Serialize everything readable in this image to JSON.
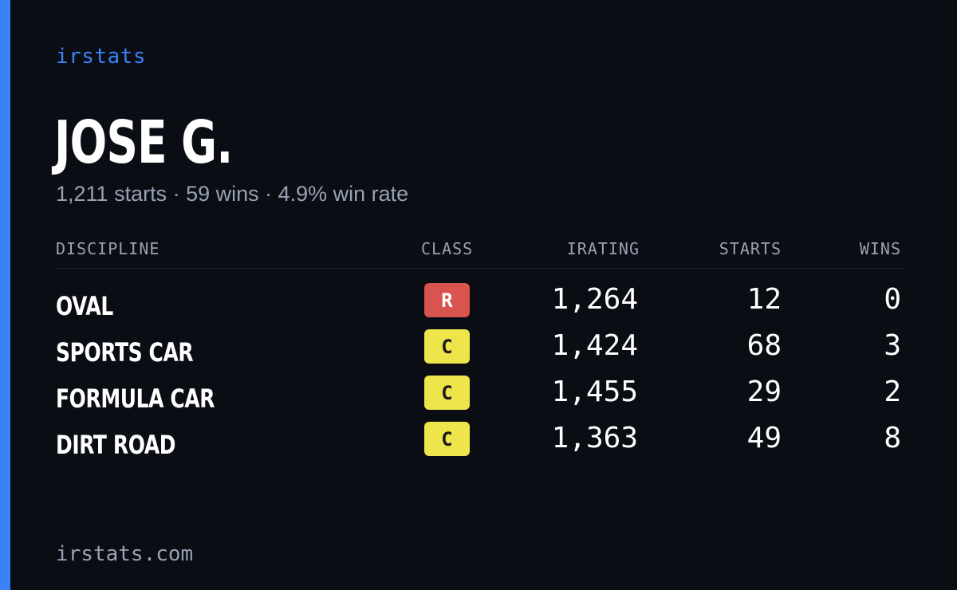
{
  "brand": "irstats",
  "driver": {
    "name": "JOSE G.",
    "summary": "1,211 starts · 59 wins · 4.9% win rate"
  },
  "table": {
    "headers": {
      "discipline": "DISCIPLINE",
      "class": "CLASS",
      "irating": "IRATING",
      "starts": "STARTS",
      "wins": "WINS"
    },
    "rows": [
      {
        "discipline": "OVAL",
        "class": "R",
        "class_bg": "#d9534f",
        "class_fg": "#ffffff",
        "irating": "1,264",
        "starts": "12",
        "wins": "0"
      },
      {
        "discipline": "SPORTS CAR",
        "class": "C",
        "class_bg": "#ede54a",
        "class_fg": "#1a1a1a",
        "irating": "1,424",
        "starts": "68",
        "wins": "3"
      },
      {
        "discipline": "FORMULA CAR",
        "class": "C",
        "class_bg": "#ede54a",
        "class_fg": "#1a1a1a",
        "irating": "1,455",
        "starts": "29",
        "wins": "2"
      },
      {
        "discipline": "DIRT ROAD",
        "class": "C",
        "class_bg": "#ede54a",
        "class_fg": "#1a1a1a",
        "irating": "1,363",
        "starts": "49",
        "wins": "8"
      }
    ]
  },
  "footer": "irstats.com",
  "colors": {
    "accent": "#3b82f6",
    "background": "#0a0d14",
    "muted_text": "#98a2b3"
  }
}
